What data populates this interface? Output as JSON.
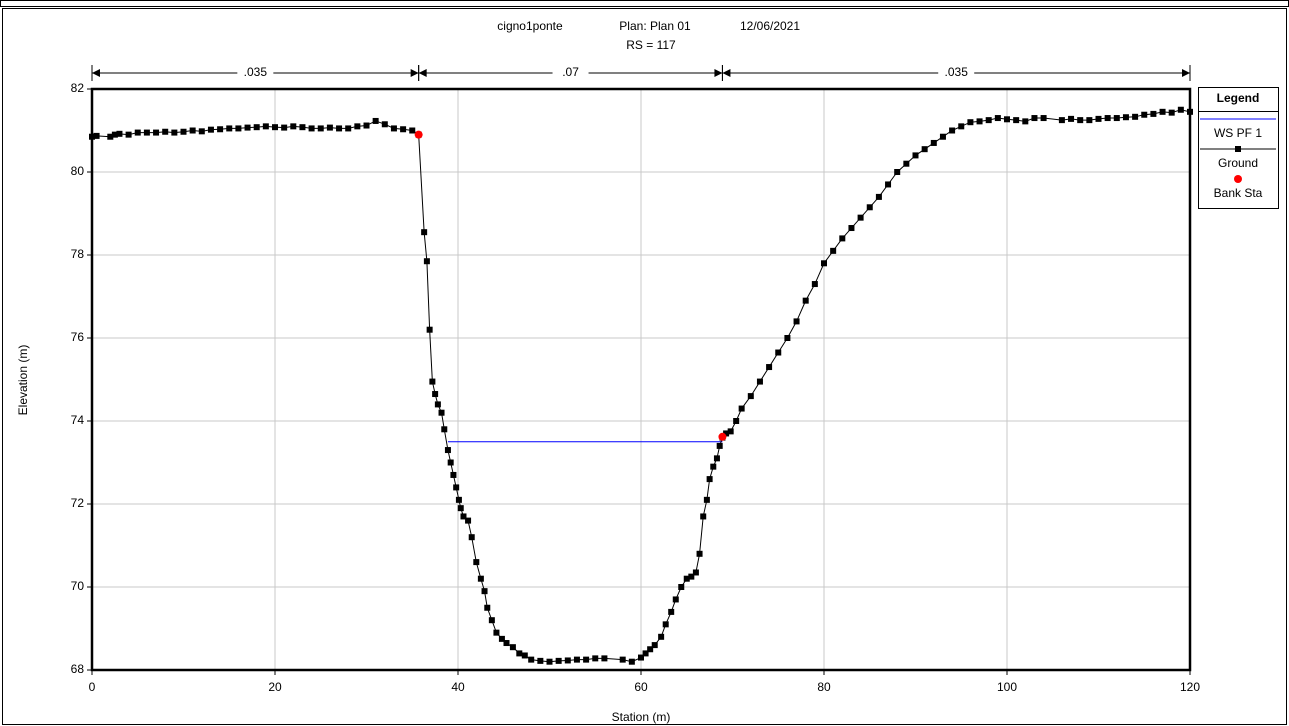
{
  "chart_data": {
    "type": "line",
    "title": "cigno1ponte",
    "plan": "Plan: Plan 01",
    "date": "12/06/2021",
    "subtitle": "RS = 117",
    "x_label": "Station (m)",
    "y_label": "Elevation (m)",
    "xlim": [
      0,
      120
    ],
    "ylim": [
      68,
      82
    ],
    "xticks": [
      0,
      20,
      40,
      60,
      80,
      100,
      120
    ],
    "yticks": [
      68,
      70,
      72,
      74,
      76,
      78,
      80,
      82
    ],
    "grid": true,
    "legend_title": "Legend",
    "legend_position": "right",
    "manning": [
      {
        "label": ".035",
        "start": 0,
        "end": 35.7
      },
      {
        "label": ".07",
        "start": 35.7,
        "end": 68.9
      },
      {
        "label": ".035",
        "start": 68.9,
        "end": 120
      }
    ],
    "series": [
      {
        "name": "WS PF 1",
        "color": "#0000ff",
        "marker": "none",
        "x": [
          38.9,
          68.9
        ],
        "values": [
          73.5,
          73.5
        ]
      },
      {
        "name": "Ground",
        "color": "#000000",
        "marker": "square",
        "x": [
          0,
          0.5,
          2,
          2.5,
          3,
          4,
          5,
          6,
          7,
          8,
          9,
          10,
          11,
          12,
          13,
          14,
          15,
          16,
          17,
          18,
          19,
          20,
          21,
          22,
          23,
          24,
          25,
          26,
          27,
          28,
          29,
          30,
          31,
          32,
          33,
          34,
          35,
          35.7,
          36.3,
          36.6,
          36.9,
          37.2,
          37.5,
          37.8,
          38.2,
          38.5,
          38.9,
          39.2,
          39.5,
          39.8,
          40.1,
          40.3,
          40.6,
          41.1,
          41.5,
          42,
          42.5,
          42.9,
          43.2,
          43.7,
          44.2,
          44.8,
          45.3,
          46,
          46.7,
          47.3,
          48,
          49,
          50,
          51,
          52,
          53,
          54,
          55,
          56,
          58,
          59,
          60,
          60.5,
          61,
          61.5,
          62.2,
          62.7,
          63.3,
          63.8,
          64.4,
          65,
          65.5,
          66,
          66.4,
          66.8,
          67.2,
          67.5,
          67.9,
          68.3,
          68.6,
          68.9,
          69.3,
          69.8,
          70.4,
          71,
          72,
          73,
          74,
          75,
          76,
          77,
          78,
          79,
          80,
          81,
          82,
          83,
          84,
          85,
          86,
          87,
          88,
          89,
          90,
          91,
          92,
          93,
          94,
          95,
          96,
          97,
          98,
          99,
          100,
          101,
          102,
          103,
          104,
          106,
          107,
          108,
          109,
          110,
          111,
          112,
          113,
          114,
          115,
          116,
          117,
          118,
          119,
          120
        ],
        "values": [
          80.85,
          80.87,
          80.85,
          80.9,
          80.92,
          80.9,
          80.95,
          80.95,
          80.95,
          80.97,
          80.95,
          80.97,
          81.0,
          80.98,
          81.02,
          81.03,
          81.05,
          81.05,
          81.07,
          81.08,
          81.1,
          81.08,
          81.07,
          81.1,
          81.08,
          81.05,
          81.05,
          81.07,
          81.05,
          81.05,
          81.1,
          81.12,
          81.23,
          81.15,
          81.05,
          81.03,
          81.0,
          80.9,
          78.55,
          77.85,
          76.2,
          74.95,
          74.65,
          74.4,
          74.2,
          73.8,
          73.3,
          73.0,
          72.7,
          72.4,
          72.1,
          71.9,
          71.7,
          71.6,
          71.2,
          70.6,
          70.2,
          69.9,
          69.5,
          69.2,
          68.9,
          68.75,
          68.65,
          68.55,
          68.4,
          68.35,
          68.25,
          68.22,
          68.2,
          68.22,
          68.23,
          68.25,
          68.25,
          68.28,
          68.28,
          68.25,
          68.2,
          68.3,
          68.4,
          68.5,
          68.6,
          68.8,
          69.1,
          69.4,
          69.7,
          70.0,
          70.2,
          70.25,
          70.35,
          70.8,
          71.7,
          72.1,
          72.6,
          72.9,
          73.1,
          73.4,
          73.6,
          73.7,
          73.75,
          74.0,
          74.3,
          74.6,
          74.95,
          75.3,
          75.65,
          76.0,
          76.4,
          76.9,
          77.3,
          77.8,
          78.1,
          78.4,
          78.65,
          78.9,
          79.15,
          79.4,
          79.7,
          80.0,
          80.2,
          80.4,
          80.55,
          80.7,
          80.85,
          81.0,
          81.1,
          81.2,
          81.22,
          81.25,
          81.3,
          81.27,
          81.25,
          81.22,
          81.3,
          81.3,
          81.25,
          81.28,
          81.25,
          81.25,
          81.28,
          81.3,
          81.3,
          81.32,
          81.33,
          81.38,
          81.4,
          81.45,
          81.43,
          81.5,
          81.45
        ]
      },
      {
        "name": "Bank Sta",
        "color": "#ff0000",
        "marker": "circle",
        "x": [
          35.7,
          68.9
        ],
        "values": [
          80.9,
          73.62
        ]
      }
    ]
  }
}
